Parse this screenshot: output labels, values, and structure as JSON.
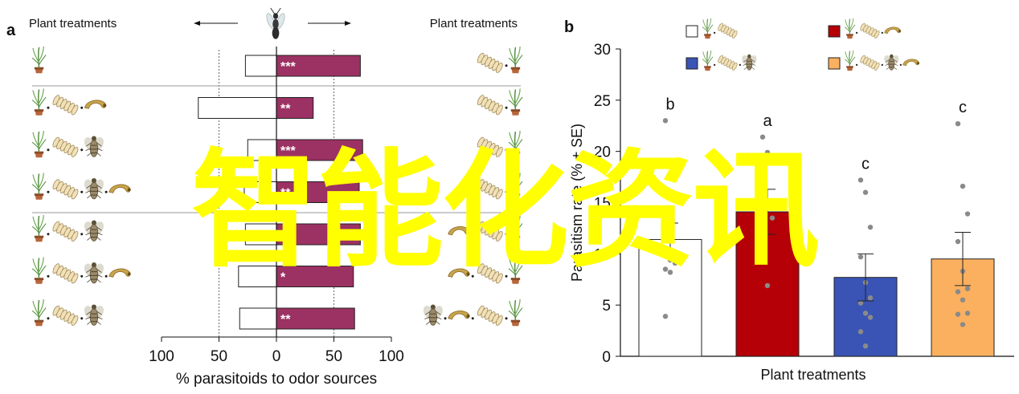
{
  "panel_a": {
    "letter": "a",
    "left_header": "Plant treatments",
    "right_header": "Plant treatments",
    "xlabel": "% parasitoids to odor sources",
    "ticks": [
      {
        "v": -100,
        "label": "100"
      },
      {
        "v": -50,
        "label": "50"
      },
      {
        "v": 0,
        "label": "0"
      },
      {
        "v": 50,
        "label": "50"
      },
      {
        "v": 100,
        "label": "100"
      }
    ],
    "colors": {
      "right_bar": "#9c3163",
      "left_bar": "#ffffff",
      "dashed": "#444444"
    },
    "rows": [
      {
        "left_icons": [
          "plant-icon"
        ],
        "right_icons": [
          "eggs-icon",
          "plant-icon"
        ],
        "left_value": 27,
        "right_value": 73,
        "significance": "***"
      },
      {
        "left_icons": [
          "plant-icon",
          "eggs-icon",
          "larva-icon"
        ],
        "right_icons": [
          "eggs-icon",
          "plant-icon"
        ],
        "left_value": 68,
        "right_value": 32,
        "significance": "**"
      },
      {
        "left_icons": [
          "plant-icon",
          "eggs-icon",
          "adult-insect-icon"
        ],
        "right_icons": [
          "eggs-icon",
          "plant-icon"
        ],
        "left_value": 25,
        "right_value": 75,
        "significance": "***"
      },
      {
        "left_icons": [
          "plant-icon",
          "eggs-icon",
          "adult-insect-icon",
          "larva-icon"
        ],
        "right_icons": [
          "eggs-icon",
          "plant-icon"
        ],
        "left_value": 28,
        "right_value": 72,
        "significance": "**"
      },
      {
        "left_icons": [
          "plant-icon",
          "eggs-icon",
          "adult-insect-icon"
        ],
        "right_icons": [
          "larva-icon",
          "eggs-icon",
          "plant-icon"
        ],
        "left_value": 27,
        "right_value": 73,
        "significance": "*"
      },
      {
        "left_icons": [
          "plant-icon",
          "eggs-icon",
          "adult-insect-icon",
          "larva-icon"
        ],
        "right_icons": [
          "larva-icon",
          "eggs-icon",
          "plant-icon"
        ],
        "left_value": 33,
        "right_value": 67,
        "significance": "*"
      },
      {
        "left_icons": [
          "plant-icon",
          "eggs-icon",
          "adult-insect-icon"
        ],
        "right_icons": [
          "adult-insect-icon",
          "larva-icon",
          "eggs-icon",
          "plant-icon"
        ],
        "left_value": 32,
        "right_value": 68,
        "significance": "**"
      }
    ]
  },
  "chart_data": {
    "type": "bar",
    "letter": "b",
    "categories": [
      "plant+eggs",
      "plant+eggs+larva",
      "plant+eggs+adult",
      "plant+eggs+adult+larva"
    ],
    "values": [
      11.4,
      14.1,
      7.7,
      9.5
    ],
    "errors": [
      1.6,
      2.2,
      2.3,
      2.6
    ],
    "letters": [
      "b",
      "a",
      "c",
      "c"
    ],
    "colors": [
      "#ffffff",
      "#b50007",
      "#3a54b5",
      "#fbb05f"
    ],
    "points": [
      [
        23.0,
        9.4,
        9.1,
        8.5,
        8.2,
        9.7,
        3.9
      ],
      [
        21.4,
        19.9,
        13.5,
        12.4,
        6.9
      ],
      [
        17.2,
        16.0,
        12.6,
        9.7,
        7.2,
        5.7,
        5.2,
        4.2,
        3.8,
        2.4,
        1.0
      ],
      [
        22.7,
        16.6,
        13.9,
        11.2,
        8.3,
        6.6,
        6.3,
        5.5,
        4.2,
        4.1,
        3.1
      ]
    ],
    "xlabel": "Plant treatments",
    "ylabel": "Parasitism rate (% ± SE)",
    "ylim": [
      0,
      30
    ],
    "yticks": [
      0,
      5,
      10,
      15,
      20,
      25,
      30
    ],
    "legend": [
      {
        "icons": [
          "plant-icon",
          "eggs-icon"
        ]
      },
      {
        "icons": [
          "plant-icon",
          "eggs-icon",
          "larva-icon"
        ]
      },
      {
        "icons": [
          "plant-icon",
          "eggs-icon",
          "adult-insect-icon"
        ]
      },
      {
        "icons": [
          "plant-icon",
          "eggs-icon",
          "adult-insect-icon",
          "larva-icon"
        ]
      }
    ],
    "legend_placement": "top",
    "grid": false
  },
  "watermark": "智能化资讯"
}
